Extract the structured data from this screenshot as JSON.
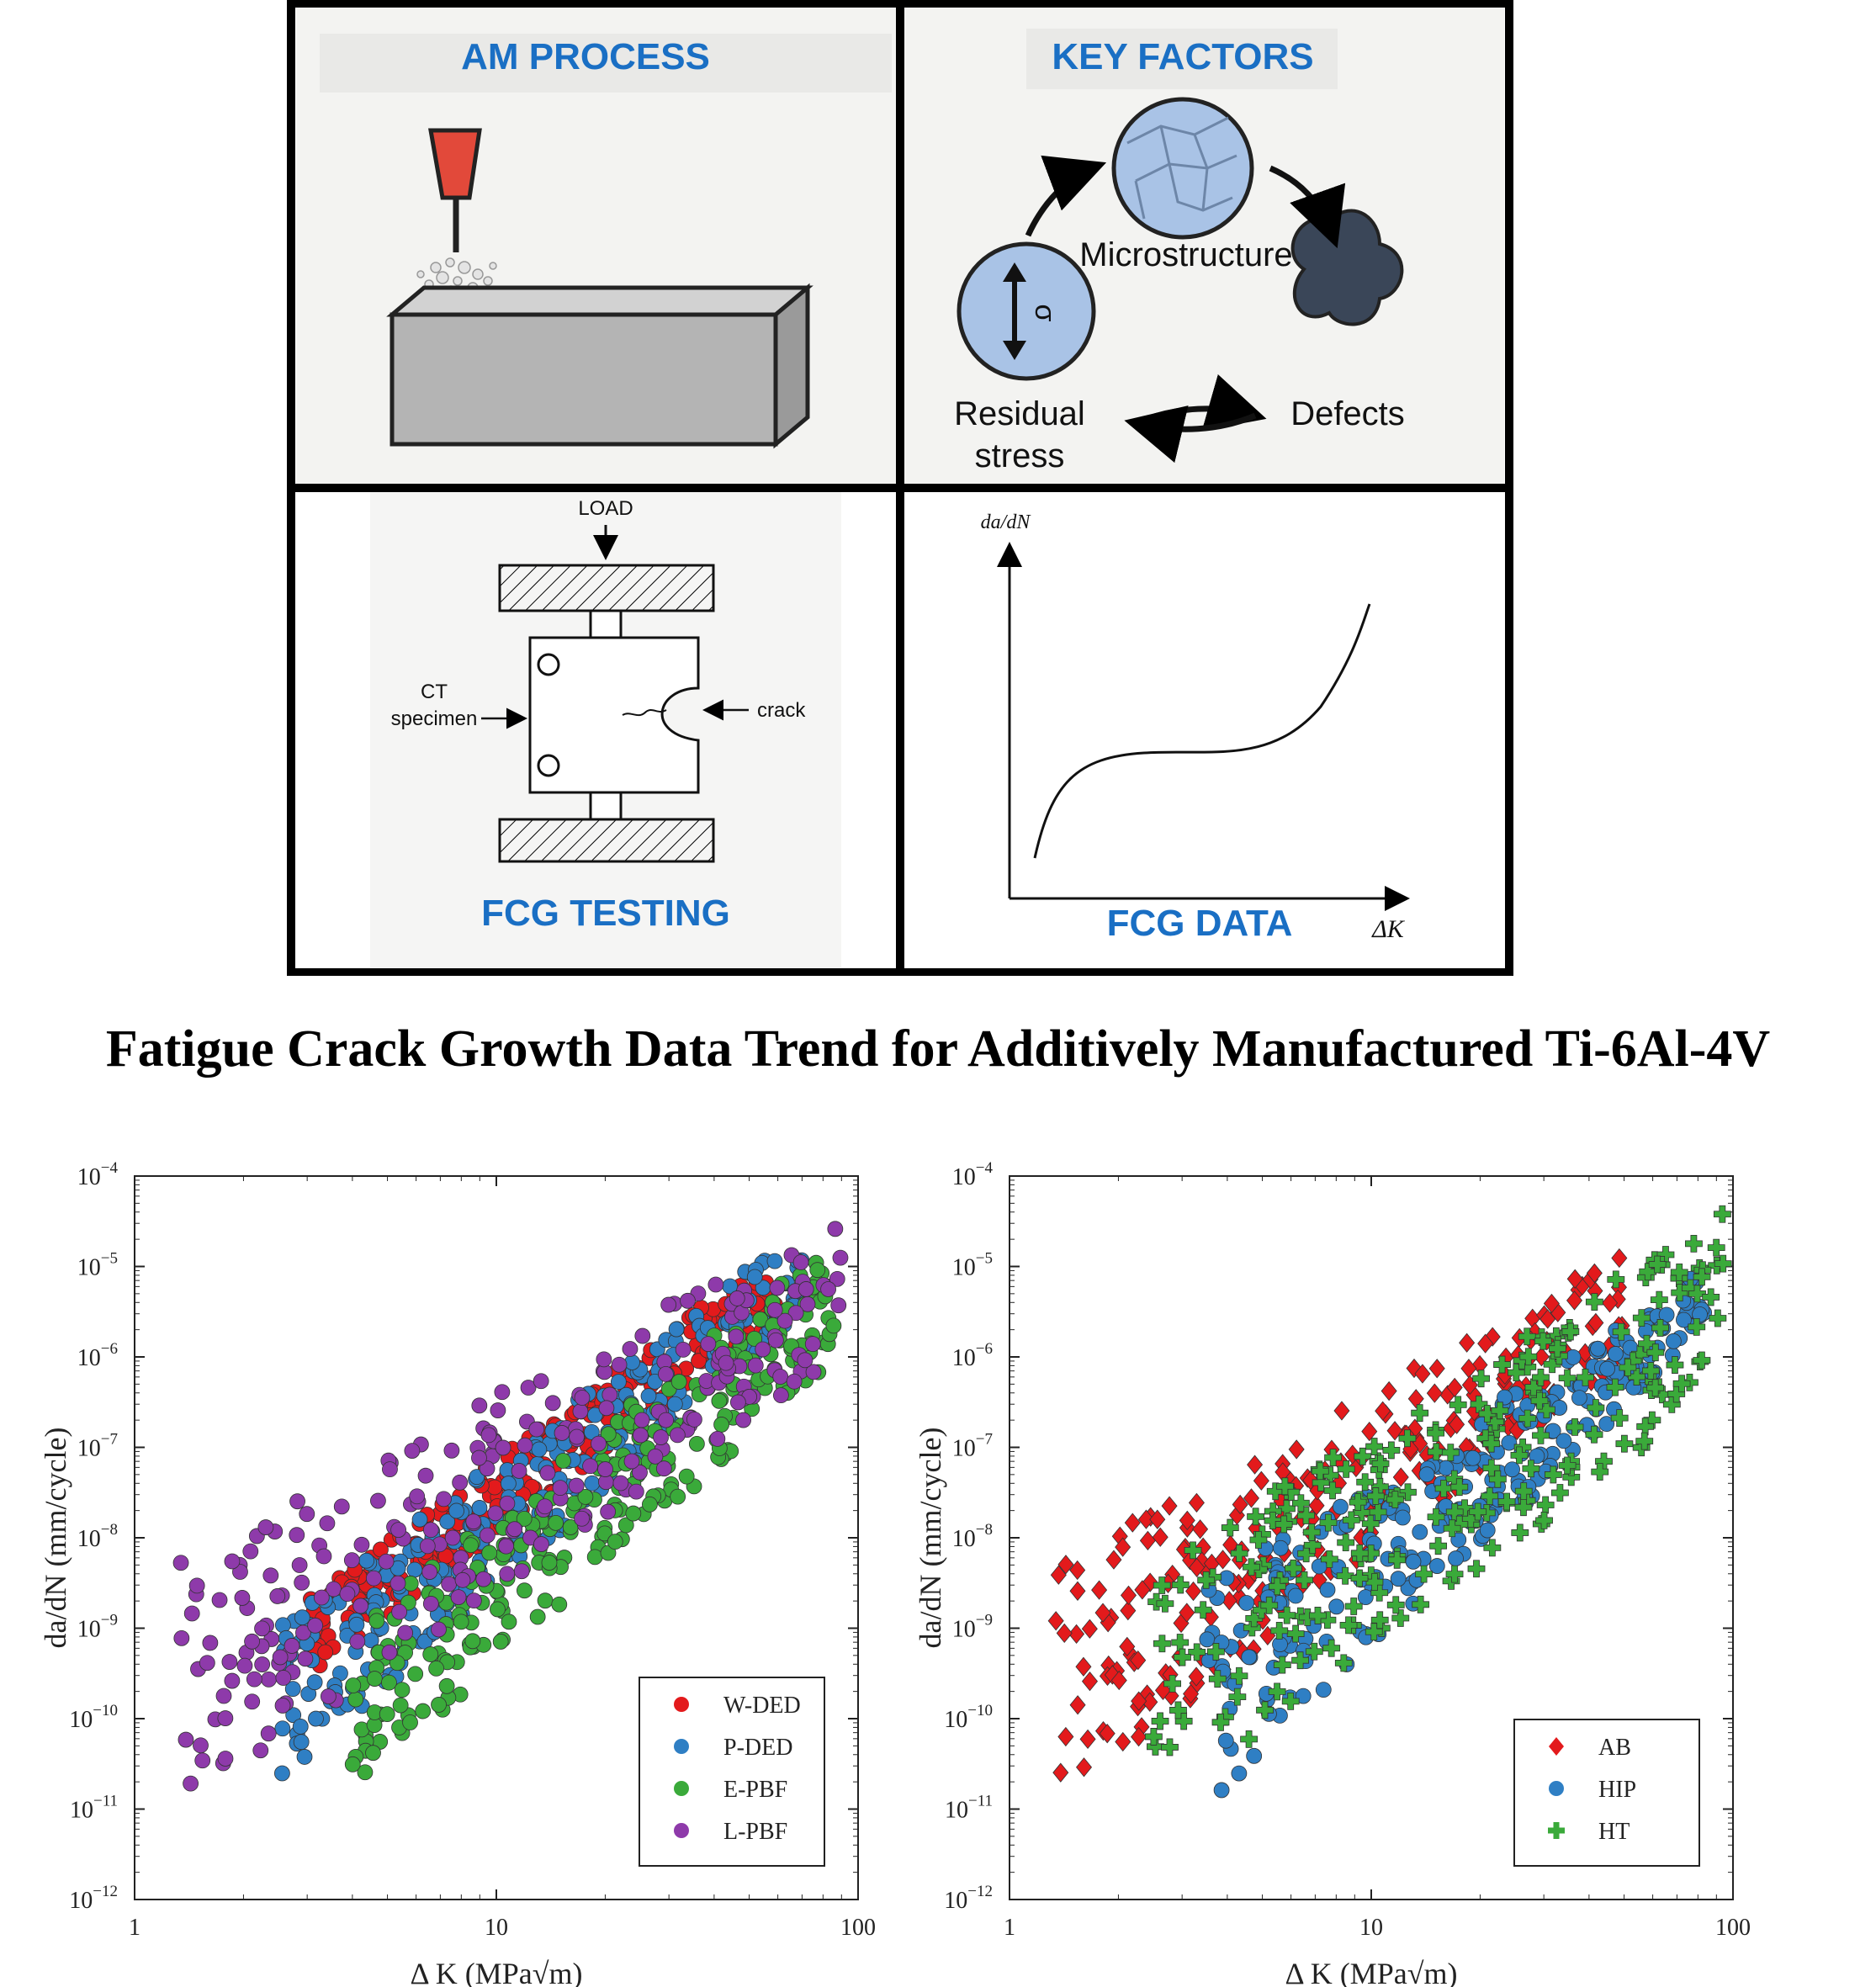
{
  "panels": {
    "am_process": {
      "title": "AM PROCESS"
    },
    "key_factors": {
      "title": "KEY FACTORS",
      "microstructure": "Microstructure",
      "defects": "Defects",
      "residual_line1": "Residual",
      "residual_line2": "stress",
      "sigma_symbol": "σ"
    },
    "fcg_testing": {
      "title": "FCG TESTING",
      "load": "LOAD",
      "ct_line1": "CT",
      "ct_line2": "specimen",
      "crack": "crack"
    },
    "fcg_data": {
      "title": "FCG DATA",
      "y_label": "da/dN",
      "x_label": "ΔK"
    }
  },
  "page_title": "Fatigue Crack Growth Data Trend for Additively Manufactured Ti-6Al-4V",
  "colors": {
    "title_blue": "#1a6fc4",
    "w_ded": "#e31a1c",
    "p_ded": "#2f7fc4",
    "e_pbf": "#3aaa3a",
    "l_pbf": "#8e3aaa"
  },
  "chart_data": [
    {
      "type": "scatter",
      "xlabel": "Δ K (MPa√m)",
      "ylabel": "da/dN (mm/cycle)",
      "xscale": "log",
      "yscale": "log",
      "xlim": [
        1,
        100
      ],
      "ylim": [
        1e-12,
        0.0001
      ],
      "x_ticks": [
        "1",
        "10",
        "100"
      ],
      "y_ticks_exp": [
        "-12",
        "-11",
        "-10",
        "-9",
        "-8",
        "-7",
        "-6",
        "-5",
        "-4"
      ],
      "legend_position": "bottom-right",
      "series": [
        {
          "name": "W-DED",
          "marker": "circle",
          "color": "#e31a1c",
          "band": {
            "x": [
              3.0,
              60
            ],
            "y_low": [
              3e-10,
              2e-06
            ],
            "y_high": [
              2e-09,
              1.5e-05
            ]
          }
        },
        {
          "name": "P-DED",
          "marker": "circle",
          "color": "#2f7fc4",
          "band": {
            "x": [
              2.5,
              70
            ],
            "y_low": [
              2e-11,
              3e-06
            ],
            "y_high": [
              1e-09,
              3e-05
            ]
          }
        },
        {
          "name": "E-PBF",
          "marker": "circle",
          "color": "#3aaa3a",
          "band": {
            "x": [
              4.0,
              90
            ],
            "y_low": [
              1.5e-11,
              1e-06
            ],
            "y_high": [
              1e-09,
              2.5e-05
            ]
          }
        },
        {
          "name": "L-PBF",
          "marker": "circle",
          "color": "#8e3aaa",
          "band": {
            "x": [
              1.3,
              90
            ],
            "y_low": [
              1e-11,
              1e-06
            ],
            "y_high": [
              5e-09,
              4e-05
            ]
          }
        }
      ]
    },
    {
      "type": "scatter",
      "xlabel": "Δ K (MPa√m)",
      "ylabel": "da/dN (mm/cycle)",
      "xscale": "log",
      "yscale": "log",
      "xlim": [
        1,
        100
      ],
      "ylim": [
        1e-12,
        0.0001
      ],
      "x_ticks": [
        "1",
        "10",
        "100"
      ],
      "y_ticks_exp": [
        "-12",
        "-11",
        "-10",
        "-9",
        "-8",
        "-7",
        "-6",
        "-5",
        "-4"
      ],
      "legend_position": "bottom-right",
      "series": [
        {
          "name": "AB",
          "marker": "diamond",
          "color": "#e31a1c",
          "band": {
            "x": [
              1.3,
              50
            ],
            "y_low": [
              1e-11,
              1e-06
            ],
            "y_high": [
              5e-09,
              1.5e-05
            ]
          }
        },
        {
          "name": "HIP",
          "marker": "circle",
          "color": "#2f7fc4",
          "band": {
            "x": [
              3.5,
              85
            ],
            "y_low": [
              1e-11,
              2e-06
            ],
            "y_high": [
              3e-09,
              1e-05
            ]
          }
        },
        {
          "name": "HT",
          "marker": "plus",
          "color": "#3aaa3a",
          "band": {
            "x": [
              2.5,
              95
            ],
            "y_low": [
              7e-12,
              5e-07
            ],
            "y_high": [
              5e-09,
              4e-05
            ]
          }
        }
      ]
    }
  ]
}
